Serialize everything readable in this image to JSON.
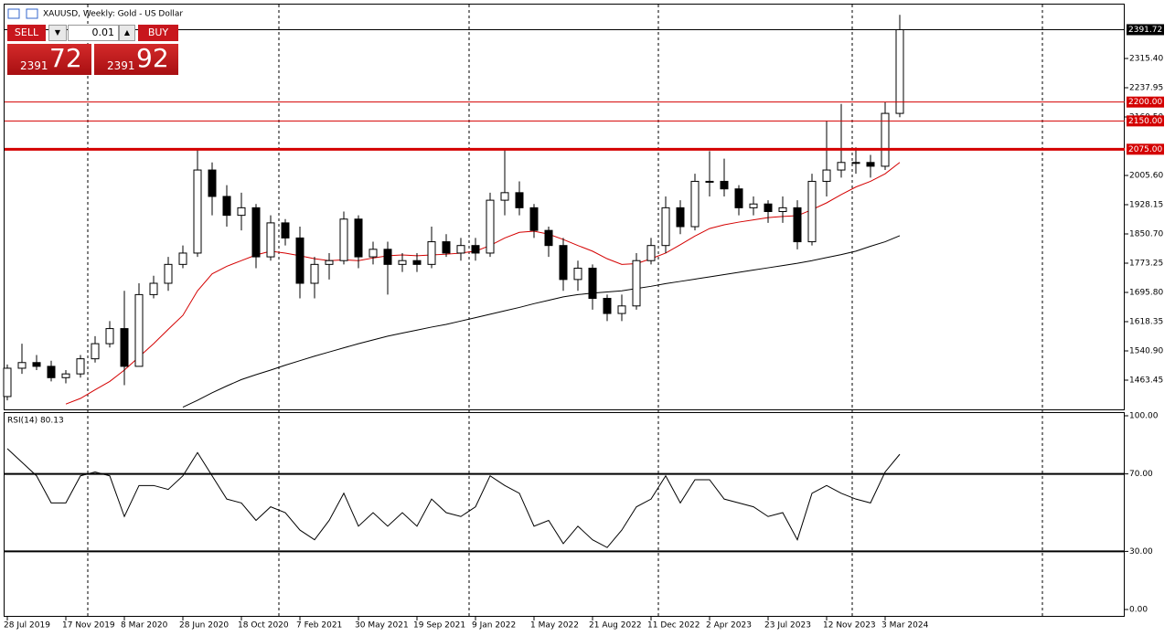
{
  "chart_data": [
    {
      "type": "candlestick",
      "title": "XAUUSD, Weekly:  Gold - US Dollar",
      "categories": [
        "28 Jul 2019",
        null,
        null,
        null,
        "17 Nov 2019",
        null,
        null,
        null,
        "8 Mar 2020",
        null,
        null,
        null,
        "28 Jun 2020",
        null,
        null,
        null,
        "18 Oct 2020",
        null,
        null,
        null,
        "7 Feb 2021",
        null,
        null,
        null,
        "30 May 2021",
        null,
        null,
        null,
        "19 Sep 2021",
        null,
        null,
        null,
        "9 Jan 2022",
        null,
        null,
        null,
        "1 May 2022",
        null,
        null,
        null,
        "21 Aug 2022",
        null,
        null,
        null,
        "11 Dec 2022",
        null,
        null,
        null,
        "2 Apr 2023",
        null,
        null,
        null,
        "23 Jul 2023",
        null,
        null,
        null,
        "12 Nov 2023",
        null,
        null,
        null,
        "3 Mar 2024",
        null
      ],
      "open": [
        1420,
        1495,
        1510,
        1500,
        1470,
        1480,
        1520,
        1560,
        1600,
        1500,
        1690,
        1720,
        1770,
        1800,
        2020,
        1950,
        1900,
        1920,
        1790,
        1880,
        1840,
        1720,
        1770,
        1780,
        1890,
        1790,
        1810,
        1770,
        1780,
        1770,
        1830,
        1800,
        1820,
        1800,
        1940,
        1960,
        1920,
        1860,
        1820,
        1730,
        1760,
        1680,
        1640,
        1660,
        1780,
        1820,
        1920,
        1870,
        1990,
        1990,
        1970,
        1920,
        1930,
        1910,
        1920,
        1830,
        1990,
        2020,
        2040,
        2040,
        2030,
        2170
      ],
      "high": [
        1505,
        1560,
        1530,
        1515,
        1490,
        1530,
        1580,
        1620,
        1700,
        1720,
        1740,
        1790,
        1820,
        2075,
        2040,
        1980,
        1960,
        1930,
        1900,
        1890,
        1870,
        1790,
        1800,
        1910,
        1900,
        1830,
        1830,
        1800,
        1800,
        1870,
        1850,
        1840,
        1840,
        1960,
        2075,
        1990,
        1930,
        1870,
        1840,
        1780,
        1770,
        1690,
        1690,
        1800,
        1840,
        1950,
        1940,
        2010,
        2070,
        2050,
        1980,
        1950,
        1940,
        1950,
        1940,
        2010,
        2150,
        2195,
        2080,
        2060,
        2200,
        2431
      ],
      "low": [
        1410,
        1480,
        1490,
        1460,
        1455,
        1470,
        1510,
        1550,
        1450,
        1500,
        1680,
        1700,
        1760,
        1790,
        1900,
        1870,
        1860,
        1760,
        1780,
        1820,
        1680,
        1680,
        1730,
        1770,
        1760,
        1770,
        1690,
        1750,
        1750,
        1760,
        1790,
        1780,
        1780,
        1790,
        1900,
        1900,
        1840,
        1790,
        1700,
        1700,
        1650,
        1620,
        1620,
        1650,
        1770,
        1800,
        1850,
        1860,
        1950,
        1950,
        1900,
        1900,
        1880,
        1880,
        1810,
        1820,
        1950,
        2000,
        2010,
        2000,
        2020,
        2160
      ],
      "close": [
        1495,
        1510,
        1500,
        1470,
        1480,
        1520,
        1560,
        1600,
        1500,
        1690,
        1720,
        1770,
        1800,
        2020,
        1950,
        1900,
        1920,
        1790,
        1880,
        1840,
        1720,
        1770,
        1780,
        1890,
        1790,
        1810,
        1770,
        1780,
        1770,
        1830,
        1800,
        1820,
        1800,
        1940,
        1960,
        1920,
        1860,
        1820,
        1730,
        1760,
        1680,
        1640,
        1660,
        1780,
        1820,
        1920,
        1870,
        1990,
        1990,
        1970,
        1920,
        1930,
        1910,
        1920,
        1830,
        1990,
        2020,
        2040,
        2040,
        2030,
        2170,
        2391.72
      ],
      "up_color": "#ffffff",
      "down_color": "#000000",
      "lines": [
        {
          "color": "#d40000",
          "values": [
            null,
            null,
            null,
            null,
            1400,
            1415,
            1438,
            1460,
            1490,
            1525,
            1560,
            1598,
            1635,
            1700,
            1745,
            1765,
            1780,
            1795,
            1805,
            1800,
            1793,
            1785,
            1780,
            1782,
            1780,
            1787,
            1793,
            1795,
            1793,
            1795,
            1797,
            1800,
            1805,
            1820,
            1840,
            1855,
            1858,
            1850,
            1836,
            1820,
            1805,
            1785,
            1770,
            1772,
            1785,
            1800,
            1822,
            1845,
            1865,
            1875,
            1882,
            1888,
            1894,
            1897,
            1899,
            1915,
            1933,
            1955,
            1975,
            1990,
            2010,
            2040
          ]
        },
        {
          "color": "#000000",
          "values": [
            null,
            null,
            null,
            null,
            null,
            null,
            null,
            null,
            null,
            null,
            null,
            null,
            1392,
            1410,
            1430,
            1448,
            1465,
            1478,
            1490,
            1503,
            1515,
            1527,
            1538,
            1549,
            1560,
            1570,
            1580,
            1588,
            1596,
            1604,
            1611,
            1620,
            1629,
            1638,
            1647,
            1656,
            1666,
            1675,
            1684,
            1690,
            1694,
            1697,
            1700,
            1706,
            1712,
            1719,
            1725,
            1731,
            1737,
            1743,
            1749,
            1755,
            1761,
            1767,
            1773,
            1780,
            1788,
            1796,
            1805,
            1818,
            1830,
            1846
          ]
        }
      ],
      "levels": [
        {
          "value": 2391.72,
          "label": "2391.72",
          "color": "#000000",
          "width": 1
        },
        {
          "value": 2200,
          "label": "2200.00",
          "color": "#d40000",
          "width": 1
        },
        {
          "value": 2150,
          "label": "2150.00",
          "color": "#d40000",
          "width": 1
        },
        {
          "value": 2075,
          "label": "2075.00",
          "color": "#d40000",
          "width": 3
        }
      ],
      "ylim": [
        1386.0,
        2458.2
      ],
      "yticks": [
        {
          "value": 2315.4,
          "label": "2315.40"
        },
        2237.95,
        {
          "value": 2160.5,
          "label": "2160.50"
        },
        {
          "value": 2005.6,
          "label": "2005.60"
        },
        1928.15,
        {
          "value": 1850.7,
          "label": "1850.70"
        },
        1773.25,
        {
          "value": 1695.8,
          "label": "1695.80"
        },
        1618.35,
        {
          "value": 1540.9,
          "label": "1540.90"
        },
        1463.45
      ]
    },
    {
      "type": "line",
      "title": "RSI(14) 80.13",
      "color": "#000000",
      "values": [
        83,
        76,
        69,
        55,
        55,
        69,
        71,
        69,
        48,
        64,
        64,
        62,
        69,
        81,
        69,
        57,
        55,
        46,
        53,
        50,
        41,
        36,
        46,
        60,
        43,
        50,
        43,
        50,
        43,
        57,
        50,
        48,
        53,
        69,
        64,
        60,
        43,
        46,
        34,
        43,
        36,
        32,
        41,
        53,
        57,
        69,
        55,
        67,
        67,
        57,
        55,
        53,
        48,
        50,
        36,
        60,
        64,
        60,
        57,
        55,
        71,
        80.13
      ],
      "levels": [
        70,
        30
      ],
      "ylim": [
        0,
        100
      ],
      "yticks": [
        {
          "value": 100,
          "label": "100.00"
        },
        {
          "value": 70,
          "label": "70.00"
        },
        {
          "value": 30,
          "label": "30.00"
        },
        {
          "value": 0,
          "label": "0.00"
        }
      ]
    }
  ],
  "trade_panel": {
    "sell_label": "SELL",
    "buy_label": "BUY",
    "lot": "0.01",
    "sell_price_main": "2391",
    "sell_price_pips": "72",
    "buy_price_main": "2391",
    "buy_price_pips": "92"
  }
}
